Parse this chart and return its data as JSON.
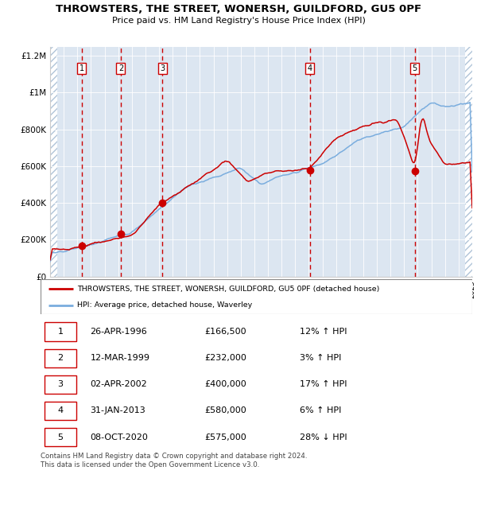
{
  "title": "THROWSTERS, THE STREET, WONERSH, GUILDFORD, GU5 0PF",
  "subtitle": "Price paid vs. HM Land Registry's House Price Index (HPI)",
  "ylim": [
    0,
    1250000
  ],
  "yticks": [
    0,
    200000,
    400000,
    600000,
    800000,
    1000000,
    1200000
  ],
  "ytick_labels": [
    "£0",
    "£200K",
    "£400K",
    "£600K",
    "£800K",
    "£1M",
    "£1.2M"
  ],
  "x_start_year": 1994,
  "x_end_year": 2025,
  "hpi_color": "#7aadde",
  "price_color": "#cc0000",
  "sale_dates": [
    1996.32,
    1999.19,
    2002.25,
    2013.08,
    2020.77
  ],
  "sale_prices": [
    166500,
    232000,
    400000,
    580000,
    575000
  ],
  "sale_labels": [
    "1",
    "2",
    "3",
    "4",
    "5"
  ],
  "legend_label_price": "THROWSTERS, THE STREET, WONERSH, GUILDFORD, GU5 0PF (detached house)",
  "legend_label_hpi": "HPI: Average price, detached house, Waverley",
  "table_rows": [
    [
      "1",
      "26-APR-1996",
      "£166,500",
      "12% ↑ HPI"
    ],
    [
      "2",
      "12-MAR-1999",
      "£232,000",
      "3% ↑ HPI"
    ],
    [
      "3",
      "02-APR-2002",
      "£400,000",
      "17% ↑ HPI"
    ],
    [
      "4",
      "31-JAN-2013",
      "£580,000",
      "6% ↑ HPI"
    ],
    [
      "5",
      "08-OCT-2020",
      "£575,000",
      "28% ↓ HPI"
    ]
  ],
  "footer": "Contains HM Land Registry data © Crown copyright and database right 2024.\nThis data is licensed under the Open Government Licence v3.0.",
  "bg_color": "#dce6f1",
  "grid_color": "#ffffff",
  "dashed_line_color": "#cc0000",
  "box_label_color": "#cc0000"
}
